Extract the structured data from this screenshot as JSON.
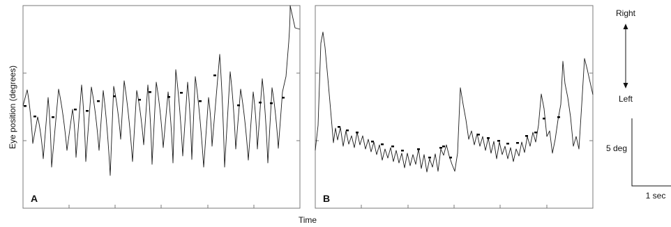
{
  "chart_data": {
    "type": "line",
    "xlabel": "Time",
    "ylabel": "Eye position (degrees)",
    "panels": [
      {
        "label": "A",
        "ylim": [
          -15,
          15
        ]
      },
      {
        "label": "B",
        "ylim": [
          -15,
          15
        ]
      }
    ],
    "direction_legend": {
      "top": "Right",
      "bottom": "Left"
    },
    "scale_bar": {
      "vertical": "5 deg",
      "horizontal": "1 sec"
    },
    "colors": {
      "trace": "#1a1a1a",
      "frame": "#7a7a7a"
    }
  }
}
